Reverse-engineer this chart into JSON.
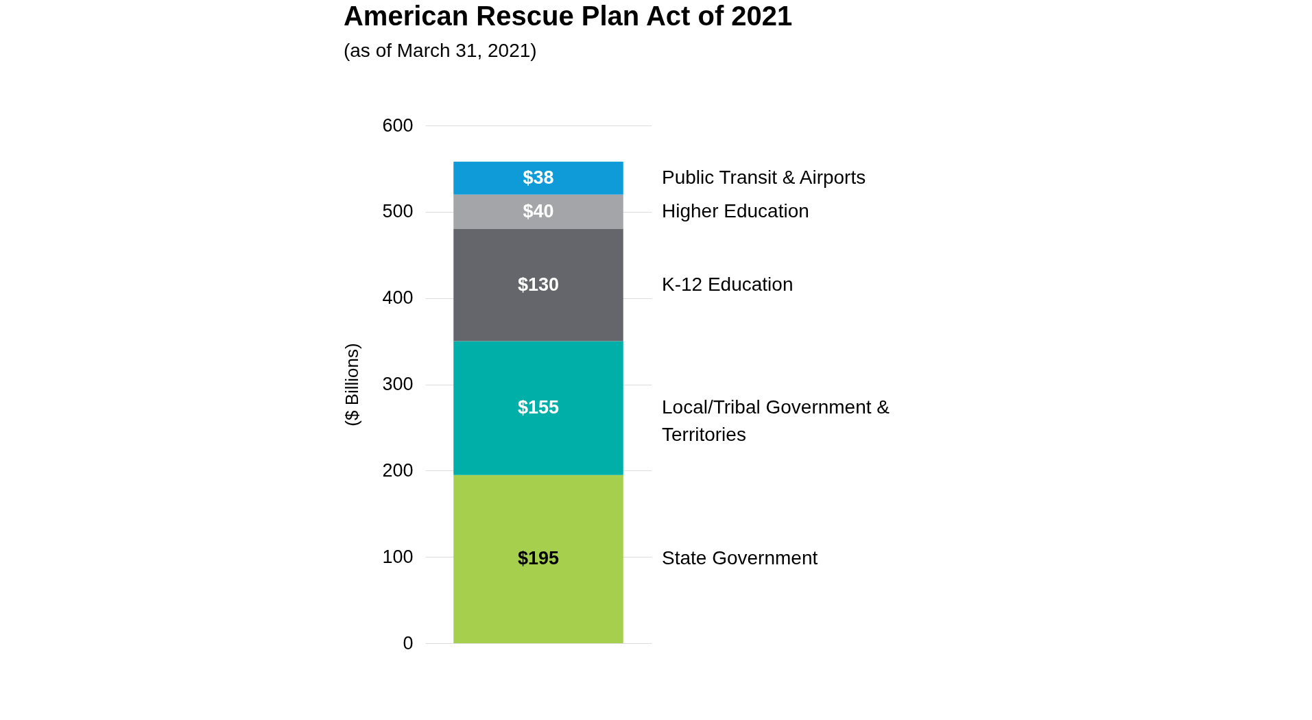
{
  "chart_data": {
    "type": "bar",
    "title": "American Rescue Plan Act of 2021",
    "subtitle": "(as of March 31, 2021)",
    "ylabel": "($ Billions)",
    "categories": [
      null
    ],
    "stacked": true,
    "ylim": [
      0,
      600
    ],
    "yticks": [
      0,
      100,
      200,
      300,
      400,
      500,
      600
    ],
    "grid": "y",
    "series": [
      {
        "name": "State Government",
        "color": "#a5cf4c",
        "values": [
          195
        ],
        "value_labels": [
          "$195"
        ]
      },
      {
        "name": "Local/Tribal Government & Territories",
        "color": "#00afa8",
        "values": [
          155
        ],
        "value_labels": [
          "$155"
        ]
      },
      {
        "name": "K-12 Education",
        "color": "#65666b",
        "values": [
          130
        ],
        "value_labels": [
          "$130"
        ]
      },
      {
        "name": "Higher Education",
        "color": "#a3a5a8",
        "values": [
          40
        ],
        "value_labels": [
          "$40"
        ]
      },
      {
        "name": "Public Transit & Airports",
        "color": "#0f9bd7",
        "values": [
          38
        ],
        "value_labels": [
          "$38"
        ]
      }
    ]
  }
}
